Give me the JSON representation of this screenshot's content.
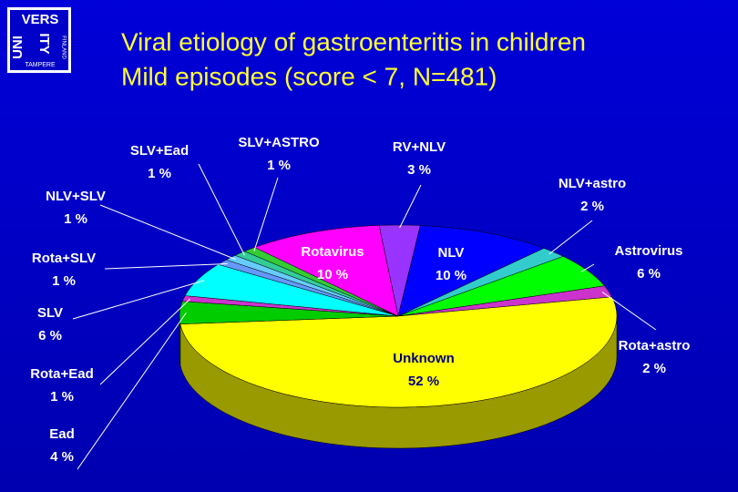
{
  "logo": {
    "top": "VERS",
    "left": "UNI",
    "right": "ITY",
    "city": "TAMPERE",
    "country": "FINLAND"
  },
  "chart_data": {
    "type": "pie",
    "title": "Viral etiology of gastroenteritis in children",
    "subtitle": "Mild episodes (score < 7, N=481)",
    "categories": [
      "RV+NLV",
      "NLV",
      "NLV+astro",
      "Astrovirus",
      "Rota+astro",
      "Unknown",
      "Ead",
      "Rota+Ead",
      "SLV",
      "Rota+SLV",
      "NLV+SLV",
      "SLV+Ead",
      "SLV+ASTRO",
      "Rotavirus"
    ],
    "values": [
      3,
      10,
      2,
      6,
      2,
      52,
      4,
      1,
      6,
      1,
      1,
      1,
      1,
      10
    ],
    "value_labels": [
      "3 %",
      "10 %",
      "2 %",
      "6 %",
      "2 %",
      "52 %",
      "4 %",
      "1 %",
      "6 %",
      "1 %",
      "1 %",
      "1 %",
      "1 %",
      "10 %"
    ],
    "colors": [
      "#9933ff",
      "#0000ff",
      "#33cccc",
      "#00ff00",
      "#cc33cc",
      "#ffff00",
      "#00cc00",
      "#cc33cc",
      "#00ffff",
      "#6699ff",
      "#66ccff",
      "#33cc99",
      "#33cc33",
      "#ff00ff"
    ]
  }
}
